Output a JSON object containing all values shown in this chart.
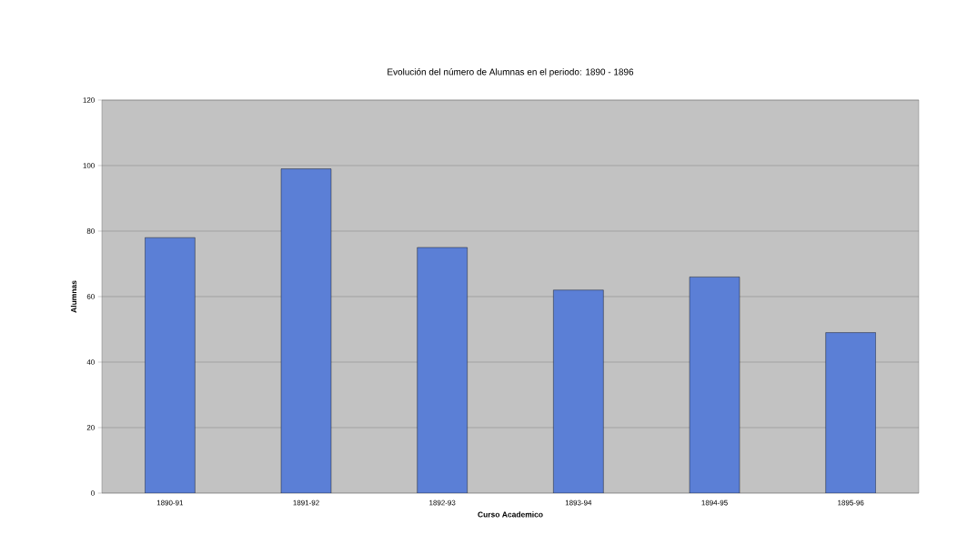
{
  "chart_data": {
    "type": "bar",
    "title": "Evolución del número de Alumnas en el periodo: 1890 - 1896",
    "xlabel": "Curso Academico",
    "ylabel": "Alumnas",
    "categories": [
      "1890-91",
      "1891-92",
      "1892-93",
      "1893-94",
      "1894-95",
      "1895-96"
    ],
    "values": [
      78,
      99,
      75,
      62,
      66,
      49
    ],
    "color": "#5b7fd6",
    "ylim": [
      0,
      120
    ],
    "yticks": [
      0,
      20,
      40,
      60,
      80,
      100,
      120
    ],
    "grid": "y"
  }
}
